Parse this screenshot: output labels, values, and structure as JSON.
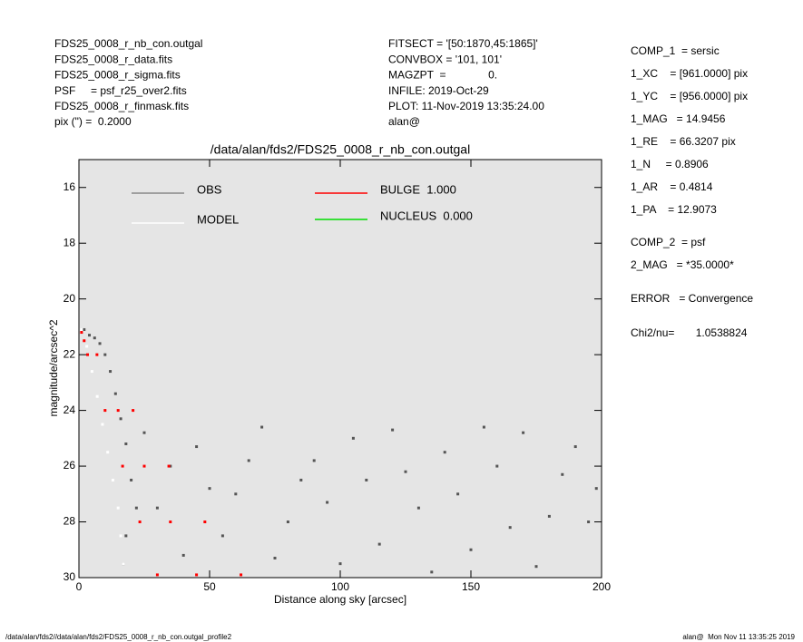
{
  "header": {
    "left": [
      "FDS25_0008_r_nb_con.outgal",
      "FDS25_0008_r_data.fits",
      "FDS25_0008_r_sigma.fits",
      "PSF     = psf_r25_over2.fits",
      "FDS25_0008_r_finmask.fits",
      "pix (\") =  0.2000"
    ],
    "middle": [
      "FITSECT = '[50:1870,45:1865]'",
      "CONVBOX = '101, 101'",
      "MAGZPT  =              0.",
      "INFILE: 2019-Oct-29",
      "PLOT: 11-Nov-2019 13:35:24.00",
      "alan@"
    ],
    "right": [
      "COMP_1  = sersic",
      "1_XC    = [961.0000] pix",
      "1_YC    = [956.0000] pix",
      "1_MAG   = 14.9456",
      "1_RE    = 66.3207 pix",
      "1_N     = 0.8906",
      "1_AR    = 0.4814",
      "1_PA    = 12.9073",
      "COMP_2  = psf",
      "2_MAG   = *35.0000*",
      "ERROR   = Convergence",
      "Chi2/nu=       1.0538824"
    ]
  },
  "footer": {
    "left": "/data/alan/fds2//data/alan/fds2/FDS25_0008_r_nb_con.outgal_profile2",
    "right": "alan@  Mon Nov 11 13:35:25 2019"
  },
  "chart_data": {
    "type": "scatter",
    "title": "/data/alan/fds2/FDS25_0008_r_nb_con.outgal",
    "x_label": "Distance along sky [arcsec]",
    "y_label": "magnitude/arcsec^2",
    "xlim": [
      0,
      200
    ],
    "ylim": [
      15,
      30
    ],
    "y_inverted": true,
    "xticks": [
      0,
      50,
      100,
      150,
      200
    ],
    "yticks": [
      16,
      18,
      20,
      22,
      24,
      26,
      28,
      30
    ],
    "background": "#e5e5e5",
    "series": [
      {
        "name": "OBS",
        "color": "#555555",
        "legend_color": "#888888",
        "x": [
          2,
          4,
          6,
          8,
          10,
          12,
          14,
          16,
          18,
          20,
          22,
          18,
          17,
          25,
          35,
          45,
          60,
          70,
          80,
          90,
          100,
          110,
          120,
          130,
          140,
          150,
          160,
          170,
          180,
          190,
          198,
          40,
          55,
          85,
          115,
          145,
          175,
          195,
          30,
          65,
          105,
          135,
          165,
          125,
          155,
          75,
          95,
          50,
          185
        ],
        "values": [
          21.1,
          21.3,
          21.4,
          21.6,
          22,
          22.6,
          23.4,
          24.3,
          25.2,
          26.5,
          27.5,
          28.5,
          29.5,
          24.8,
          26,
          25.3,
          27,
          24.6,
          28,
          25.8,
          29.5,
          26.5,
          24.7,
          27.5,
          25.5,
          29,
          26,
          24.8,
          27.8,
          25.3,
          26.8,
          29.2,
          28.5,
          26.5,
          28.8,
          27,
          29.6,
          28,
          27.5,
          25.8,
          25,
          29.8,
          28.2,
          26.2,
          24.6,
          29.3,
          27.3,
          26.8,
          26.3
        ]
      },
      {
        "name": "MODEL",
        "color": "#ffffff",
        "legend_color": "#ffffff",
        "x": [
          1,
          3,
          5,
          7,
          9,
          11,
          13,
          15,
          16,
          17
        ],
        "values": [
          21.1,
          21.7,
          22.6,
          23.5,
          24.5,
          25.5,
          26.5,
          27.5,
          28.5,
          29.5
        ]
      },
      {
        "name": "BULGE  1.000",
        "color": "#ff0000",
        "legend_color": "#ff0000",
        "x": [
          1,
          2,
          3.3,
          6.9,
          10,
          15,
          20.7,
          16.7,
          25,
          34.4,
          23.3,
          35,
          48.2,
          30,
          45,
          62
        ],
        "values": [
          21.2,
          21.5,
          22,
          22,
          24,
          24,
          24,
          26,
          26,
          26,
          28,
          28,
          28,
          29.9,
          29.9,
          29.9
        ]
      },
      {
        "name": "NUCLEUS  0.000",
        "color": "#00dd00",
        "legend_color": "#00dd00",
        "x": [],
        "values": []
      }
    ]
  }
}
